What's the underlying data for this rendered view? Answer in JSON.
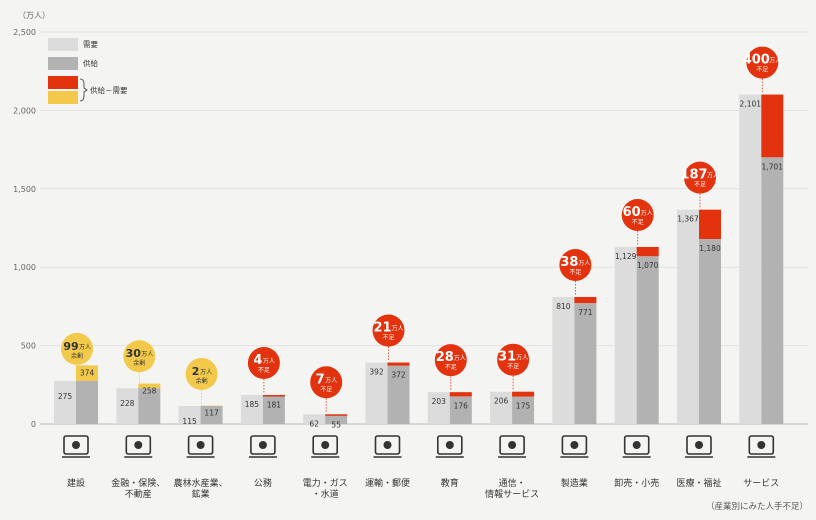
{
  "chart_data": {
    "type": "bar",
    "title": "",
    "unit_label": "（万人）",
    "yticks": [
      0,
      500,
      1000,
      1500,
      2000,
      2500
    ],
    "ytick_labels": [
      "0",
      "500",
      "1,000",
      "1,500",
      "2,000",
      "2,500"
    ],
    "ylim": [
      0,
      2500
    ],
    "footnote": "（産業別にみた人手不足）",
    "legend": {
      "demand": "需要",
      "supply": "供給",
      "gap": "供給－需要"
    },
    "colors": {
      "demand": "#dcdcdc",
      "supply": "#b2b2b2",
      "shortage": "#e2320e",
      "surplus": "#f2c94a",
      "grid": "#e2e2e2"
    },
    "series": [
      {
        "name": "需要",
        "values": [
          275,
          228,
          115,
          185,
          62,
          392,
          203,
          206,
          810,
          1129,
          1367,
          2101
        ]
      },
      {
        "name": "供給",
        "values": [
          374,
          258,
          117,
          181,
          55,
          372,
          176,
          175,
          771,
          1070,
          1180,
          1701
        ]
      }
    ],
    "categories": [
      {
        "label": [
          "建設"
        ],
        "icon": "construction-icon",
        "demand": 275,
        "supply": 374,
        "demand_label": "275",
        "supply_label": "374",
        "gap": "99",
        "gap_unit": "万人",
        "gap_text": "余剰",
        "kind": "surplus"
      },
      {
        "label": [
          "金融・保険、",
          "不動産"
        ],
        "icon": "finance-icon",
        "demand": 228,
        "supply": 258,
        "demand_label": "228",
        "supply_label": "258",
        "gap": "30",
        "gap_unit": "万人",
        "gap_text": "余剰",
        "kind": "surplus"
      },
      {
        "label": [
          "農林水産業、",
          "鉱業"
        ],
        "icon": "agriculture-icon",
        "demand": 115,
        "supply": 117,
        "demand_label": "115",
        "supply_label": "117",
        "gap": "2",
        "gap_unit": "万人",
        "gap_text": "余剰",
        "kind": "surplus"
      },
      {
        "label": [
          "公務"
        ],
        "icon": "public-office-icon",
        "demand": 185,
        "supply": 181,
        "demand_label": "185",
        "supply_label": "181",
        "gap": "4",
        "gap_unit": "万人",
        "gap_text": "不足",
        "kind": "shortage"
      },
      {
        "label": [
          "電力・ガス",
          "・水道"
        ],
        "icon": "utilities-icon",
        "demand": 62,
        "supply": 55,
        "demand_label": "62",
        "supply_label": "55",
        "gap": "7",
        "gap_unit": "万人",
        "gap_text": "不足",
        "kind": "shortage"
      },
      {
        "label": [
          "運輸・郵便"
        ],
        "icon": "transport-icon",
        "demand": 392,
        "supply": 372,
        "demand_label": "392",
        "supply_label": "372",
        "gap": "21",
        "gap_unit": "万人",
        "gap_text": "不足",
        "kind": "shortage"
      },
      {
        "label": [
          "教育"
        ],
        "icon": "education-icon",
        "demand": 203,
        "supply": 176,
        "demand_label": "203",
        "supply_label": "176",
        "gap": "28",
        "gap_unit": "万人",
        "gap_text": "不足",
        "kind": "shortage"
      },
      {
        "label": [
          "通信・",
          "情報サービス"
        ],
        "icon": "telecom-icon",
        "demand": 206,
        "supply": 175,
        "demand_label": "206",
        "supply_label": "175",
        "gap": "31",
        "gap_unit": "万人",
        "gap_text": "不足",
        "kind": "shortage"
      },
      {
        "label": [
          "製造業"
        ],
        "icon": "manufacturing-icon",
        "demand": 810,
        "supply": 771,
        "demand_label": "810",
        "supply_label": "771",
        "gap": "38",
        "gap_unit": "万人",
        "gap_text": "不足",
        "kind": "shortage"
      },
      {
        "label": [
          "卸売・小売"
        ],
        "icon": "retail-icon",
        "demand": 1129,
        "supply": 1070,
        "demand_label": "1,129",
        "supply_label": "1,070",
        "gap": "60",
        "gap_unit": "万人",
        "gap_text": "不足",
        "kind": "shortage"
      },
      {
        "label": [
          "医療・福祉"
        ],
        "icon": "medical-icon",
        "demand": 1367,
        "supply": 1180,
        "demand_label": "1,367",
        "supply_label": "1,180",
        "gap": "187",
        "gap_unit": "万人",
        "gap_text": "不足",
        "kind": "shortage"
      },
      {
        "label": [
          "サービス"
        ],
        "icon": "service-icon",
        "demand": 2101,
        "supply": 1701,
        "demand_label": "2,101",
        "supply_label": "1,701",
        "gap": "400",
        "gap_unit": "万人",
        "gap_text": "不足",
        "kind": "shortage"
      }
    ]
  }
}
